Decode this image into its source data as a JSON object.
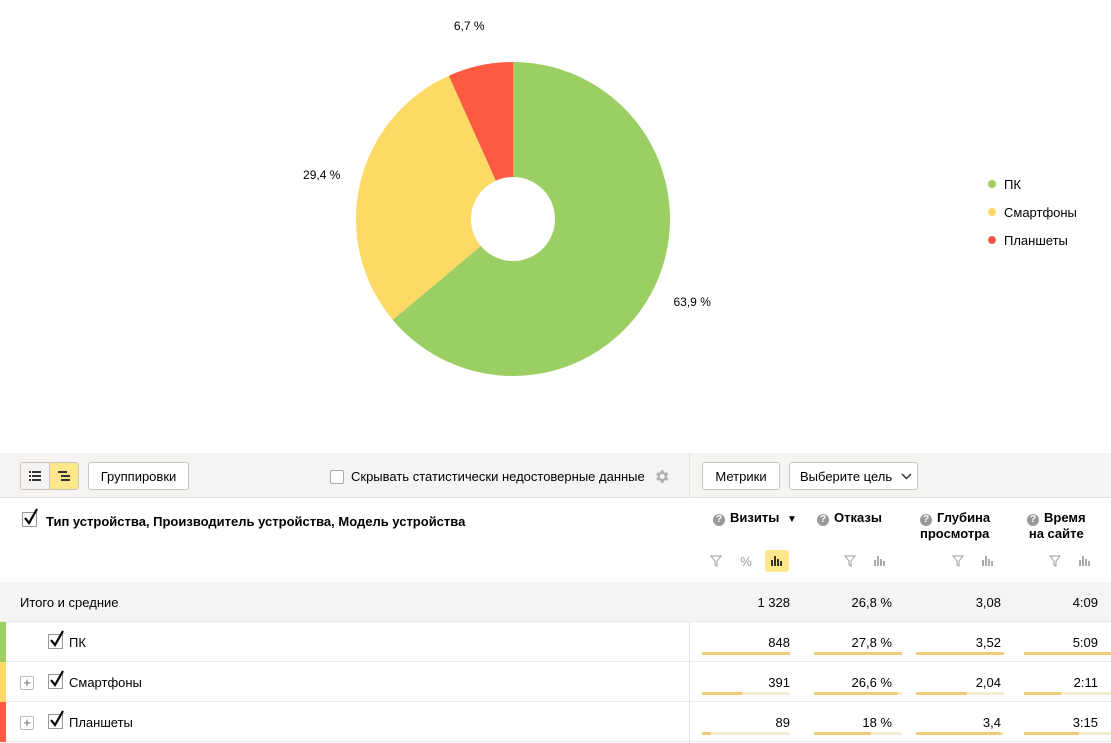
{
  "chart_data": {
    "type": "pie",
    "categories": [
      "ПК",
      "Смартфоны",
      "Планшеты"
    ],
    "values": [
      63.9,
      29.4,
      6.7
    ],
    "value_labels": [
      "63,9 %",
      "29,4 %",
      "6,7 %"
    ],
    "colors": [
      "#9bcf63",
      "#fdd965",
      "#fd5b41"
    ],
    "legend_position": "right",
    "donut": true
  },
  "toolbar": {
    "groupings_label": "Группировки",
    "hide_unreliable_label": "Скрывать статистически недостоверные данные",
    "metrics_label": "Метрики",
    "goal_select_label": "Выберите цель"
  },
  "table": {
    "dimensions_title": "Тип устройства, Производитель устройства, Модель устройства",
    "columns": [
      {
        "label_line1": "Визиты",
        "label_line2": "",
        "sorted": "▼"
      },
      {
        "label_line1": "Отказы",
        "label_line2": ""
      },
      {
        "label_line1": "Глубина",
        "label_line2": "просмотра"
      },
      {
        "label_line1": "Время",
        "label_line2": "на сайте"
      }
    ],
    "percent_symbol": "%",
    "total_row": {
      "label": "Итого и средние",
      "values": [
        "1 328",
        "26,8 %",
        "3,08",
        "4:09"
      ]
    },
    "rows": [
      {
        "label": "ПК",
        "values": [
          "848",
          "27,8 %",
          "3,52",
          "5:09"
        ],
        "color": "#9bcf63",
        "bars": [
          1.0,
          1.0,
          1.0,
          1.0
        ],
        "expandable": false
      },
      {
        "label": "Смартфоны",
        "values": [
          "391",
          "26,6 %",
          "2,04",
          "2:11"
        ],
        "color": "#fdd965",
        "bars": [
          0.46,
          0.96,
          0.58,
          0.42
        ],
        "expandable": true
      },
      {
        "label": "Планшеты",
        "values": [
          "89",
          "18 %",
          "3,4",
          "3:15"
        ],
        "color": "#fd5b41",
        "bars": [
          0.1,
          0.65,
          0.97,
          0.63
        ],
        "expandable": true
      }
    ]
  }
}
